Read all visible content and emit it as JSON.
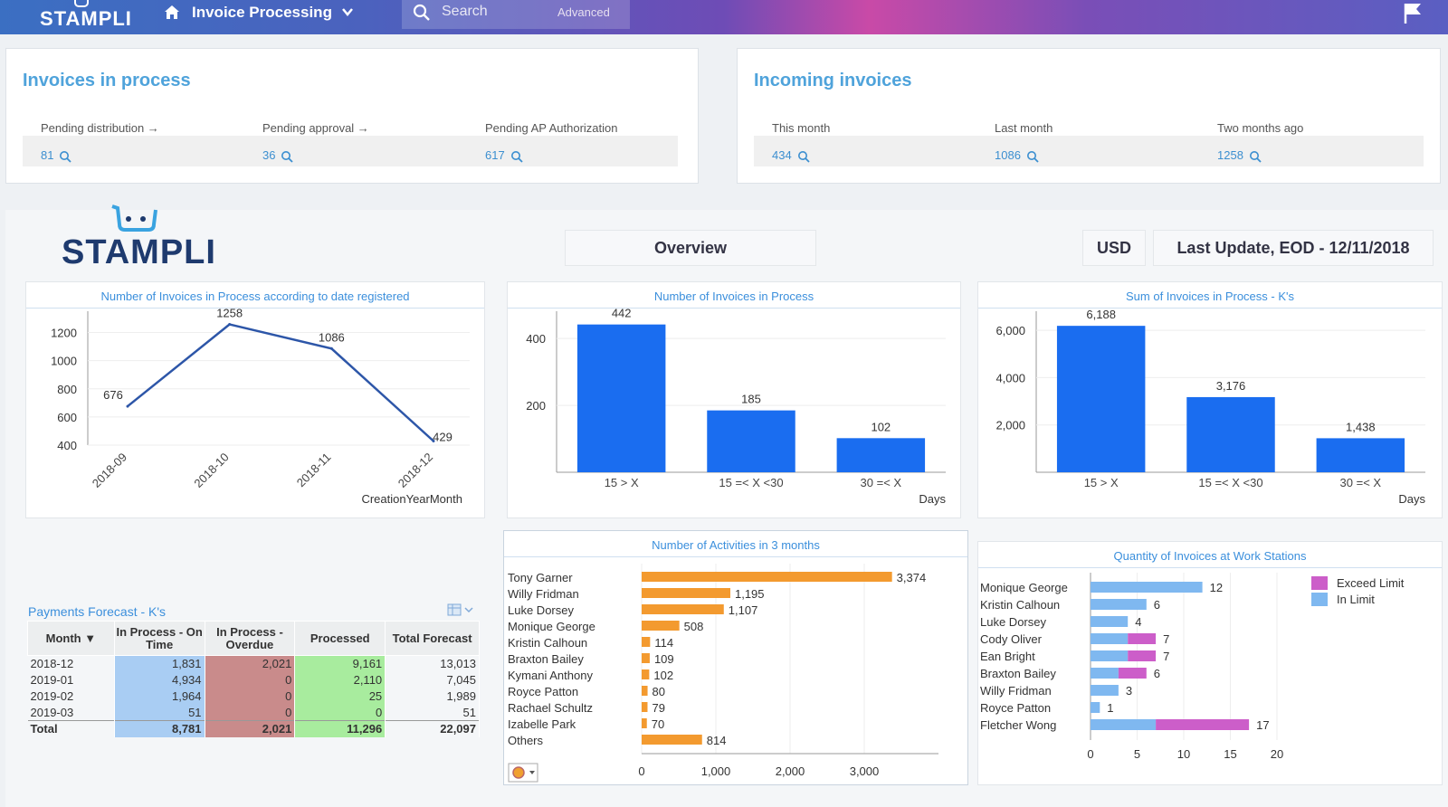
{
  "app": {
    "brand": "STAMPLI",
    "nav_title": "Invoice Processing"
  },
  "search": {
    "placeholder": "Search",
    "advanced": "Advanced"
  },
  "in_process": {
    "title": "Invoices in process",
    "items": [
      {
        "label": "Pending distribution →",
        "value": "81"
      },
      {
        "label": "Pending approval →",
        "value": "36"
      },
      {
        "label": "Pending AP Authorization",
        "value": "617"
      }
    ]
  },
  "incoming": {
    "title": "Incoming invoices",
    "items": [
      {
        "label": "This month",
        "value": "434"
      },
      {
        "label": "Last month",
        "value": "1086"
      },
      {
        "label": "Two months ago",
        "value": "1258"
      }
    ]
  },
  "dashboard": {
    "logo": "STAMPLI",
    "tab_overview": "Overview",
    "tab_currency": "USD",
    "last_update": "Last Update, EOD -  12/11/2018"
  },
  "payments": {
    "title": "Payments Forecast - K's",
    "headers": [
      "Month",
      "In Process - On Time",
      "In Process - Overdue",
      "Processed",
      "Total Forecast"
    ],
    "rows": [
      [
        "2018-12",
        "1,831",
        "2,021",
        "9,161",
        "13,013"
      ],
      [
        "2019-01",
        "4,934",
        "0",
        "2,110",
        "7,045"
      ],
      [
        "2019-02",
        "1,964",
        "0",
        "25",
        "1,989"
      ],
      [
        "2019-03",
        "51",
        "0",
        "0",
        "51"
      ]
    ],
    "total": [
      "Total",
      "8,781",
      "2,021",
      "11,296",
      "22,097"
    ]
  },
  "chart_data": [
    {
      "type": "line",
      "title": "Number of Invoices in Process according to date registered",
      "x": [
        "2018-09",
        "2018-10",
        "2018-11",
        "2018-12"
      ],
      "values": [
        676,
        1258,
        1086,
        429
      ],
      "value_labels": [
        "676",
        "1258",
        "1086",
        "429"
      ],
      "yticks": [
        "400",
        "600",
        "800",
        "1000",
        "1200"
      ],
      "ylim": [
        400,
        1300
      ],
      "xlabel": "CreationYearMonth",
      "color": "#2d56a8"
    },
    {
      "type": "bar",
      "title": "Number of Invoices in Process",
      "categories": [
        "15 > X",
        "15 =< X <30",
        "30 =< X"
      ],
      "values": [
        442,
        185,
        102
      ],
      "value_labels": [
        "442",
        "185",
        "102"
      ],
      "yticks": [
        "200",
        "400"
      ],
      "ylim": [
        0,
        460
      ],
      "xlabel": "Days",
      "color": "#1a6df0"
    },
    {
      "type": "bar",
      "title": "Sum of Invoices in Process - K's",
      "categories": [
        "15 > X",
        "15 =< X <30",
        "30 =< X"
      ],
      "values": [
        6188,
        3176,
        1438
      ],
      "value_labels": [
        "6,188",
        "3,176",
        "1,438"
      ],
      "yticks": [
        "2,000",
        "4,000",
        "6,000"
      ],
      "ylim": [
        0,
        6500
      ],
      "xlabel": "Days",
      "color": "#1a6df0"
    },
    {
      "type": "bar",
      "orientation": "horizontal",
      "title": "Number of Activities in 3 months",
      "categories": [
        "Tony Garner",
        "Willy Fridman",
        "Luke Dorsey",
        "Monique George",
        "Kristin Calhoun",
        "Braxton Bailey",
        "Kymani Anthony",
        "Royce Patton",
        "Rachael Schultz",
        "Izabelle Park",
        "Others"
      ],
      "values": [
        3374,
        1195,
        1107,
        508,
        114,
        109,
        102,
        80,
        79,
        70,
        814
      ],
      "value_labels": [
        "3,374",
        "1,195",
        "1,107",
        "508",
        "114",
        "109",
        "102",
        "80",
        "79",
        "70",
        "814"
      ],
      "xticks": [
        "0",
        "1,000",
        "2,000",
        "3,000"
      ],
      "xlim": [
        0,
        4000
      ],
      "color": "#f39a2f"
    },
    {
      "type": "bar",
      "orientation": "horizontal",
      "stacked": true,
      "title": "Quantity of Invoices at Work Stations",
      "categories": [
        "Monique George",
        "Kristin Calhoun",
        "Luke Dorsey",
        "Cody Oliver",
        "Ean Bright",
        "Braxton Bailey",
        "Willy Fridman",
        "Royce Patton",
        "Fletcher Wong"
      ],
      "series": [
        {
          "name": "In Limit",
          "values": [
            12,
            6,
            4,
            4,
            4,
            3,
            3,
            1,
            7
          ],
          "color": "#7fb8f0"
        },
        {
          "name": "Exceed Limit",
          "values": [
            0,
            0,
            0,
            3,
            3,
            3,
            0,
            0,
            10
          ],
          "color": "#cc5ec9"
        }
      ],
      "value_labels": [
        "12",
        "6",
        "4",
        "7",
        "7",
        "6",
        "3",
        "1",
        "17"
      ],
      "xticks": [
        "0",
        "5",
        "10",
        "15",
        "20"
      ],
      "xlim": [
        0,
        20
      ]
    }
  ]
}
